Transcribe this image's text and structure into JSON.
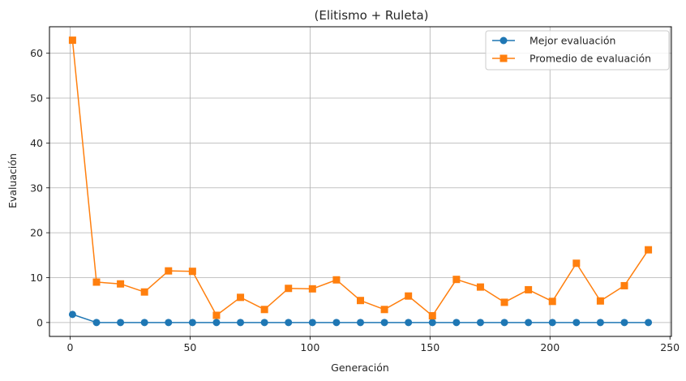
{
  "chart_data": {
    "type": "line",
    "title": "(Elitismo + Ruleta)",
    "xlabel": "Generación",
    "ylabel": "Evaluación",
    "xlim": [
      -8.6,
      250.6
    ],
    "ylim": [
      -3.1,
      65.9
    ],
    "xticks": [
      0,
      50,
      100,
      150,
      200,
      250
    ],
    "yticks": [
      0,
      10,
      20,
      30,
      40,
      50,
      60
    ],
    "grid": true,
    "legend_position": "upper right",
    "x": [
      1,
      11,
      21,
      31,
      41,
      51,
      61,
      71,
      81,
      91,
      101,
      111,
      121,
      131,
      141,
      151,
      161,
      171,
      181,
      191,
      201,
      211,
      221,
      231,
      241
    ],
    "series": [
      {
        "name": "Mejor evaluación",
        "color": "#1f77b4",
        "marker": "circle",
        "values": [
          1.8,
          0,
          0,
          0,
          0,
          0,
          0,
          0,
          0,
          0,
          0,
          0,
          0,
          0,
          0,
          0,
          0,
          0,
          0,
          0,
          0,
          0,
          0,
          0,
          0
        ]
      },
      {
        "name": "Promedio de evaluación",
        "color": "#ff7f0e",
        "marker": "square",
        "values": [
          62.9,
          9.0,
          8.6,
          6.8,
          11.5,
          11.4,
          1.6,
          5.6,
          2.9,
          7.6,
          7.5,
          9.5,
          4.9,
          2.9,
          5.9,
          1.5,
          9.6,
          7.9,
          4.5,
          7.3,
          4.7,
          13.2,
          4.8,
          8.2,
          16.2
        ]
      }
    ]
  }
}
